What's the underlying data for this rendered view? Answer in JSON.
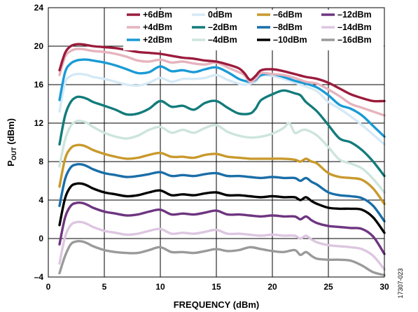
{
  "chart_data": {
    "type": "line",
    "xlabel": "FREQUENCY (dBm)",
    "ylabel_main": "P",
    "ylabel_sub": "OUT",
    "ylabel_unit": " (dBm)",
    "xlim": [
      0,
      30
    ],
    "ylim": [
      -4,
      24
    ],
    "xticks": [
      "0",
      "5",
      "10",
      "15",
      "20",
      "25",
      "30"
    ],
    "yticks": [
      "–4",
      "0",
      "4",
      "8",
      "12",
      "16",
      "20",
      "24"
    ],
    "grid": true,
    "legend_position": "top-right",
    "figure_id": "17307-023",
    "series": [
      {
        "name": "+6dBm",
        "color": "#9b1b3c",
        "x": [
          1,
          1.5,
          2,
          2.5,
          3,
          3.5,
          4,
          5,
          6,
          7,
          8,
          9,
          10,
          11,
          12,
          13,
          14,
          15,
          16,
          17,
          17.5,
          18,
          18.5,
          19,
          20,
          21,
          22,
          23,
          24,
          25,
          26,
          27,
          28,
          29,
          30
        ],
        "y": [
          17.5,
          19.3,
          20.0,
          20.2,
          20.2,
          20.1,
          20.0,
          19.9,
          19.8,
          19.6,
          19.4,
          19.3,
          19.2,
          19.0,
          18.8,
          18.7,
          18.5,
          18.4,
          18.1,
          17.7,
          17.2,
          16.5,
          16.9,
          17.5,
          17.6,
          17.4,
          17.1,
          16.8,
          16.6,
          16.2,
          15.6,
          15.0,
          14.6,
          14.3,
          14.3
        ]
      },
      {
        "name": "+4dBm",
        "color": "#e7b3bd",
        "x": [
          1,
          1.5,
          2,
          2.5,
          3,
          3.5,
          4,
          5,
          6,
          7,
          8,
          9,
          10,
          11,
          12,
          13,
          14,
          15,
          16,
          17,
          17.5,
          18,
          18.5,
          19,
          20,
          21,
          22,
          23,
          24,
          25,
          26,
          27,
          28,
          29,
          30
        ],
        "y": [
          17.0,
          18.9,
          19.5,
          19.7,
          19.7,
          19.6,
          19.5,
          19.4,
          19.2,
          18.9,
          18.5,
          18.4,
          18.6,
          18.3,
          18.4,
          18.2,
          18.1,
          18.3,
          17.8,
          17.3,
          17.0,
          16.3,
          16.6,
          17.2,
          17.1,
          17.0,
          16.7,
          16.3,
          16.1,
          15.5,
          14.8,
          14.0,
          13.6,
          13.2,
          12.8
        ]
      },
      {
        "name": "+2dBm",
        "color": "#1a9ad6",
        "x": [
          1,
          1.5,
          2,
          2.5,
          3,
          3.5,
          4,
          5,
          6,
          7,
          8,
          9,
          10,
          11,
          12,
          13,
          14,
          15,
          16,
          17,
          17.5,
          18,
          18.5,
          19,
          20,
          21,
          22,
          23,
          24,
          25,
          26,
          27,
          28,
          29,
          30
        ],
        "y": [
          14.4,
          17.3,
          18.2,
          18.5,
          18.6,
          18.6,
          18.5,
          18.3,
          18.0,
          17.6,
          17.2,
          17.3,
          17.9,
          17.4,
          17.5,
          17.3,
          17.6,
          17.8,
          17.3,
          16.6,
          16.4,
          16.3,
          16.5,
          17.0,
          17.1,
          16.8,
          16.4,
          16.1,
          15.7,
          14.9,
          13.9,
          13.5,
          12.8,
          11.7,
          10.6
        ]
      },
      {
        "name": "0dBm",
        "color": "#d5e9f6",
        "x": [
          1,
          1.5,
          2,
          2.5,
          3,
          3.5,
          4,
          5,
          6,
          7,
          8,
          9,
          10,
          11,
          12,
          13,
          14,
          15,
          16,
          17,
          17.5,
          18,
          18.5,
          19,
          20,
          21,
          22,
          23,
          24,
          25,
          26,
          27,
          28,
          29,
          30
        ],
        "y": [
          13.2,
          16.2,
          16.9,
          17.1,
          17.1,
          17.0,
          16.8,
          16.6,
          16.3,
          16.0,
          15.9,
          16.2,
          16.7,
          16.3,
          16.6,
          16.6,
          16.7,
          17.0,
          16.5,
          16.1,
          16.0,
          16.1,
          16.3,
          16.9,
          16.9,
          16.6,
          16.2,
          15.8,
          15.3,
          14.2,
          13.5,
          12.7,
          11.8,
          10.8,
          9.8
        ]
      },
      {
        "name": "–2dBm",
        "color": "#137b7b",
        "x": [
          1,
          1.5,
          2,
          2.5,
          3,
          3.5,
          4,
          5,
          6,
          7,
          8,
          9,
          10,
          11,
          12,
          13,
          14,
          15,
          16,
          17,
          18,
          18.5,
          19,
          20,
          21,
          22,
          22.5,
          23,
          24,
          25,
          26,
          27,
          28,
          29,
          30
        ],
        "y": [
          9.8,
          12.8,
          14.2,
          14.7,
          14.7,
          14.5,
          14.2,
          13.8,
          13.4,
          12.9,
          13.0,
          13.5,
          14.3,
          13.7,
          13.8,
          13.4,
          14.1,
          14.3,
          13.6,
          13.0,
          13.0,
          13.5,
          14.4,
          15.0,
          15.4,
          15.1,
          14.9,
          14.2,
          13.2,
          11.8,
          10.4,
          10.0,
          9.2,
          8.0,
          6.5
        ]
      },
      {
        "name": "–4dBm",
        "color": "#cde5dc",
        "x": [
          1,
          1.5,
          2,
          2.5,
          3,
          3.5,
          4,
          5,
          6,
          7,
          8,
          9,
          10,
          11,
          12,
          13,
          14,
          15,
          16,
          17,
          18,
          19,
          20,
          21,
          21.5,
          22,
          22.5,
          23,
          24,
          25,
          26,
          27,
          28,
          29,
          30
        ],
        "y": [
          7.5,
          10.3,
          11.7,
          12.2,
          12.2,
          12.0,
          11.6,
          11.0,
          10.6,
          10.4,
          10.7,
          11.3,
          11.6,
          11.0,
          11.3,
          11.0,
          11.5,
          11.8,
          11.1,
          10.7,
          10.5,
          10.6,
          10.9,
          11.5,
          12.0,
          11.0,
          11.2,
          11.3,
          10.7,
          9.5,
          8.2,
          7.8,
          7.3,
          6.2,
          4.8
        ]
      },
      {
        "name": "–6dBm",
        "color": "#c8992c",
        "x": [
          1,
          1.5,
          2,
          2.5,
          3,
          3.5,
          4,
          5,
          6,
          7,
          8,
          9,
          10,
          11,
          12,
          13,
          14,
          15,
          16,
          17,
          18,
          19,
          20,
          21,
          22,
          22.5,
          23,
          23.5,
          24,
          25,
          26,
          27,
          28,
          29,
          30
        ],
        "y": [
          5.4,
          8.3,
          9.4,
          9.7,
          9.7,
          9.5,
          9.2,
          8.8,
          8.5,
          8.3,
          8.4,
          8.7,
          8.9,
          8.5,
          8.5,
          8.4,
          8.7,
          8.8,
          8.5,
          8.4,
          8.3,
          8.3,
          8.3,
          8.3,
          8.2,
          8.0,
          8.3,
          8.0,
          7.8,
          6.8,
          6.4,
          6.3,
          6.1,
          5.2,
          3.6
        ]
      },
      {
        "name": "–8dBm",
        "color": "#1a6ea8",
        "x": [
          1,
          1.5,
          2,
          2.5,
          3,
          3.5,
          4,
          5,
          6,
          7,
          8,
          9,
          10,
          11,
          12,
          13,
          14,
          15,
          16,
          17,
          18,
          19,
          20,
          21,
          22,
          22.5,
          23,
          23.5,
          24,
          25,
          26,
          27,
          28,
          29,
          30
        ],
        "y": [
          3.4,
          6.2,
          7.4,
          7.7,
          7.7,
          7.5,
          7.2,
          6.8,
          6.6,
          6.4,
          6.5,
          6.7,
          6.9,
          6.5,
          6.6,
          6.5,
          6.7,
          6.8,
          6.5,
          6.5,
          6.4,
          6.3,
          6.4,
          6.3,
          6.3,
          6.0,
          6.3,
          5.9,
          5.6,
          4.8,
          4.5,
          4.4,
          4.2,
          3.4,
          1.8
        ]
      },
      {
        "name": "–10dBm",
        "color": "#000000",
        "x": [
          1,
          1.5,
          2,
          2.5,
          3,
          3.5,
          4,
          5,
          6,
          7,
          8,
          9,
          10,
          11,
          12,
          13,
          14,
          15,
          16,
          17,
          18,
          19,
          20,
          21,
          22,
          22.5,
          23,
          23.5,
          24,
          25,
          26,
          27,
          28,
          29,
          30
        ],
        "y": [
          1.4,
          4.2,
          5.4,
          5.7,
          5.7,
          5.5,
          5.2,
          4.8,
          4.6,
          4.4,
          4.5,
          4.8,
          5.0,
          4.5,
          4.6,
          4.5,
          4.7,
          4.8,
          4.5,
          4.5,
          4.4,
          4.3,
          4.4,
          4.3,
          4.3,
          4.0,
          4.3,
          3.9,
          3.6,
          3.2,
          3.1,
          3.1,
          3.0,
          2.2,
          0.6
        ]
      },
      {
        "name": "–12dBm",
        "color": "#6e3580",
        "x": [
          1,
          1.5,
          2,
          2.5,
          3,
          3.5,
          4,
          5,
          6,
          7,
          8,
          9,
          10,
          11,
          12,
          13,
          14,
          15,
          16,
          17,
          18,
          19,
          20,
          21,
          22,
          22.5,
          23,
          23.5,
          24,
          25,
          26,
          27,
          28,
          29,
          30
        ],
        "y": [
          -0.6,
          2.2,
          3.4,
          3.7,
          3.7,
          3.5,
          3.2,
          2.8,
          2.6,
          2.4,
          2.5,
          2.8,
          3.0,
          2.5,
          2.6,
          2.5,
          2.7,
          2.9,
          2.5,
          2.5,
          2.4,
          2.3,
          2.4,
          2.3,
          2.3,
          2.0,
          2.3,
          1.9,
          1.6,
          1.3,
          1.2,
          1.1,
          1.0,
          0.2,
          -1.6
        ]
      },
      {
        "name": "–14dBm",
        "color": "#ddc6e1",
        "x": [
          1,
          1.5,
          2,
          2.5,
          3,
          3.5,
          4,
          5,
          6,
          7,
          8,
          9,
          10,
          11,
          12,
          13,
          14,
          15,
          16,
          17,
          18,
          19,
          20,
          21,
          22,
          22.5,
          23,
          23.5,
          24,
          25,
          26,
          27,
          28,
          29,
          30
        ],
        "y": [
          -2.6,
          0.2,
          1.4,
          1.7,
          1.7,
          1.5,
          1.2,
          0.8,
          0.6,
          0.4,
          0.5,
          0.8,
          1.0,
          0.5,
          0.6,
          0.5,
          0.7,
          0.9,
          0.5,
          0.5,
          0.4,
          0.3,
          0.4,
          0.3,
          0.3,
          0.0,
          0.3,
          -0.1,
          -0.4,
          -0.7,
          -0.8,
          -0.9,
          -1.1,
          -1.8,
          -3.2
        ]
      },
      {
        "name": "–16dBm",
        "color": "#9a9a9a",
        "x": [
          1,
          1.5,
          2,
          2.5,
          3,
          3.5,
          4,
          5,
          6,
          7,
          8,
          9,
          10,
          11,
          12,
          13,
          14,
          15,
          16,
          17,
          18,
          19,
          20,
          21,
          22,
          22.5,
          23,
          23.5,
          24,
          25,
          26,
          27,
          28,
          29,
          30
        ],
        "y": [
          -3.6,
          -1.8,
          -0.6,
          -0.3,
          -0.3,
          -0.5,
          -0.8,
          -1.2,
          -1.4,
          -1.5,
          -1.5,
          -1.2,
          -0.9,
          -1.4,
          -1.4,
          -1.5,
          -1.3,
          -1.1,
          -1.3,
          -1.2,
          -0.9,
          -1.1,
          -1.3,
          -1.4,
          -1.2,
          -1.7,
          -1.4,
          -1.8,
          -2.1,
          -2.2,
          -2.2,
          -2.3,
          -2.8,
          -3.5,
          -3.8
        ]
      }
    ]
  }
}
